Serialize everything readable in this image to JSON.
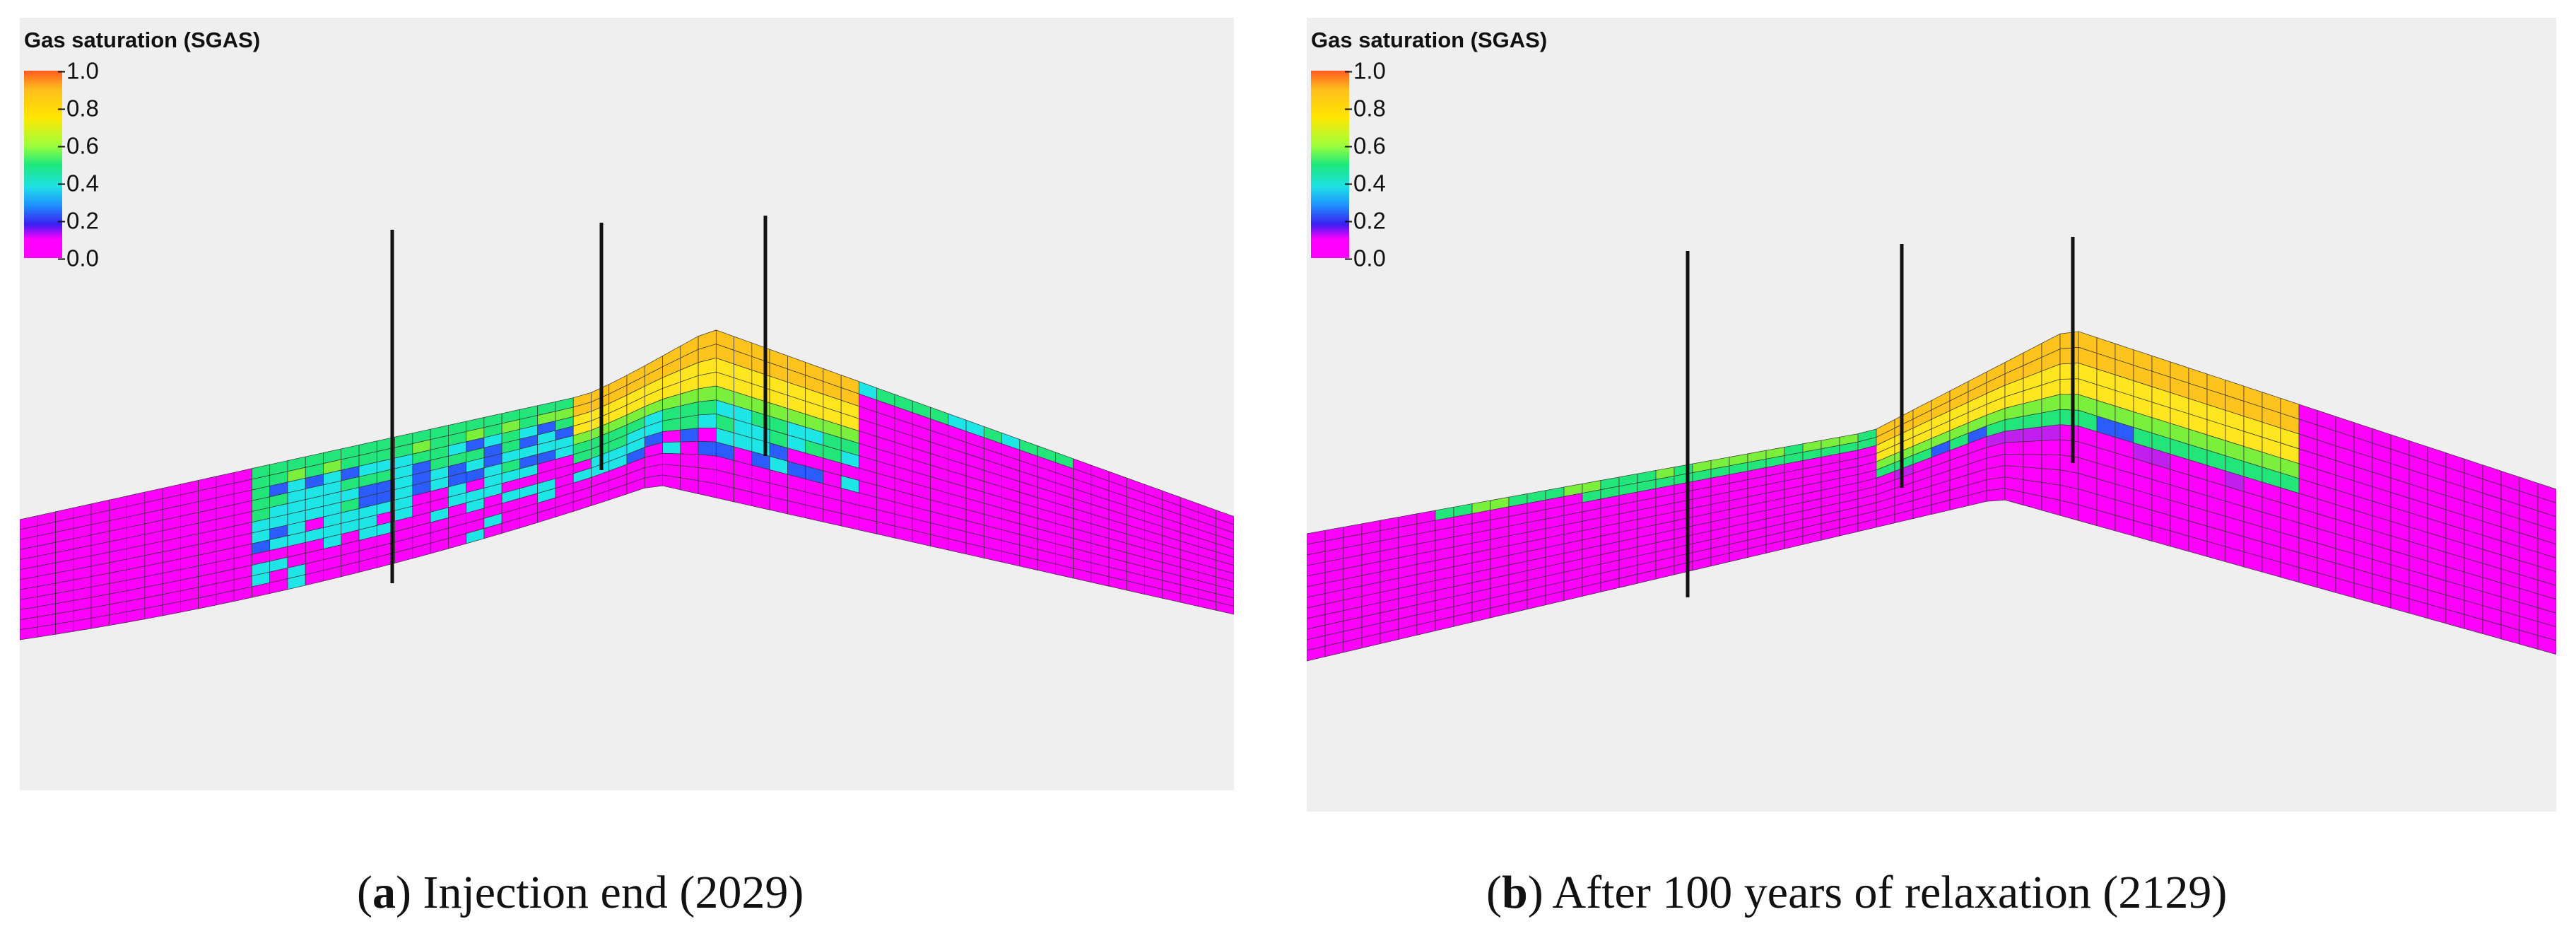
{
  "panels": [
    {
      "id": "a",
      "title": "Gas saturation (SGAS)",
      "colorbar": {
        "ticks": [
          "1.0",
          "0.8",
          "0.6",
          "0.4",
          "0.2",
          "0.0"
        ]
      },
      "wells": 3,
      "caption": {
        "letter": "a",
        "text": " Injection end (2029)"
      }
    },
    {
      "id": "b",
      "title": "Gas saturation (SGAS)",
      "colorbar": {
        "ticks": [
          "1.0",
          "0.8",
          "0.6",
          "0.4",
          "0.2",
          "0.0"
        ]
      },
      "wells": 3,
      "caption": {
        "letter": "b",
        "text": " After 100 years of relaxation (2129)"
      }
    }
  ],
  "legend": {
    "variable": "SGAS",
    "min": 0.0,
    "max": 1.0
  }
}
